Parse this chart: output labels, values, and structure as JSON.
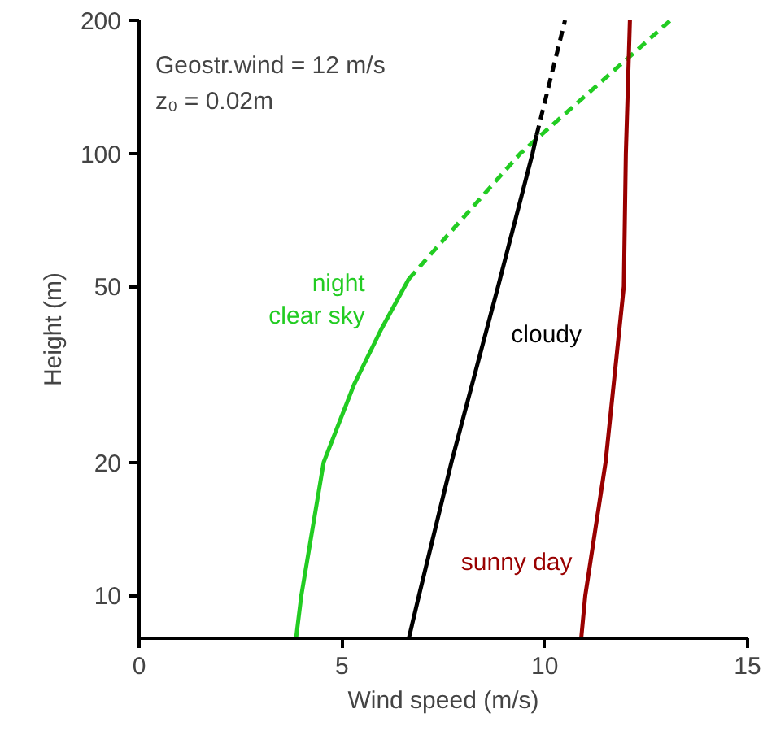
{
  "chart_data": {
    "type": "line",
    "xlabel": "Wind speed (m/s)",
    "ylabel": "Height (m)",
    "log": "y",
    "xlim": [
      0,
      15
    ],
    "xticks": [
      0,
      5,
      10,
      15
    ],
    "ylim": [
      8,
      200
    ],
    "yticks": [
      10,
      20,
      50,
      100,
      200
    ],
    "grid": false,
    "marker": "none",
    "annotations": [
      "Geostr.wind = 12 m/s",
      "z₀ = 0.02m"
    ],
    "series": [
      {
        "name": "night\nclear sky",
        "color": "#22cc22",
        "line_style": "solid",
        "x": [
          3.87,
          4.0,
          4.55,
          5.3,
          5.97,
          6.65
        ],
        "values": [
          8,
          10,
          20,
          30,
          40,
          52
        ]
      },
      {
        "color": "#22cc22",
        "line_style": "dashed",
        "x": [
          6.65,
          9.4,
          13.1
        ],
        "values": [
          52,
          100,
          200
        ]
      },
      {
        "name": "cloudy",
        "color": "#000000",
        "line_style": "solid",
        "x": [
          6.65,
          6.9,
          7.7,
          8.85,
          9.7,
          9.8
        ],
        "values": [
          8,
          10,
          20,
          50,
          100,
          110
        ]
      },
      {
        "color": "#000000",
        "line_style": "dashed",
        "x": [
          9.8,
          10.5
        ],
        "values": [
          110,
          200
        ]
      },
      {
        "name": "sunny day",
        "color": "#990000",
        "line_style": "solid",
        "x": [
          10.9,
          11.0,
          11.5,
          11.95,
          12.0,
          12.1
        ],
        "values": [
          8,
          10,
          20,
          50,
          100,
          200
        ]
      }
    ]
  }
}
